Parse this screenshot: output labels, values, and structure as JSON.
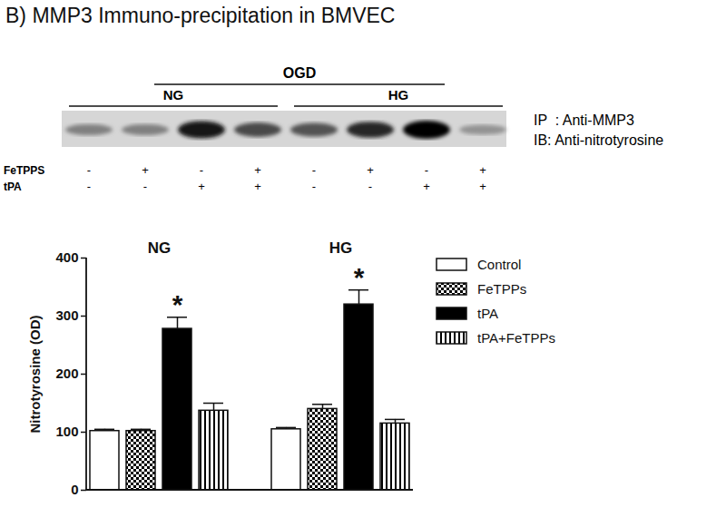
{
  "header": {
    "title": "B) MMP3 Immuno-precipitation in BMVEC"
  },
  "blot": {
    "span_label": "OGD",
    "groups": [
      {
        "label": "NG",
        "lanes": 4
      },
      {
        "label": "HG",
        "lanes": 4
      }
    ],
    "rows": [
      {
        "label": "FeTPPS",
        "signs": [
          "-",
          "+",
          "-",
          "+",
          "-",
          "+",
          "-",
          "+"
        ]
      },
      {
        "label": "tPA",
        "signs": [
          "-",
          "-",
          "+",
          "+",
          "-",
          "-",
          "+",
          "+"
        ]
      }
    ],
    "side_labels": [
      "IP  : Anti-MMP3",
      "IB: Anti-nitrotyrosine"
    ],
    "band_intensity": [
      0.35,
      0.35,
      0.9,
      0.65,
      0.6,
      0.8,
      1.0,
      0.25
    ]
  },
  "chart_data": {
    "type": "bar",
    "categories": [
      "NG",
      "HG"
    ],
    "y_label": "Nitrotyrosine (OD)",
    "ylim": [
      0,
      400
    ],
    "yticks": [
      0,
      100,
      200,
      300,
      400
    ],
    "grid": false,
    "legend": "top-right",
    "series": [
      {
        "name": "Control",
        "color": "#ffffff",
        "values": [
          102,
          105
        ],
        "errors": [
          3,
          3
        ]
      },
      {
        "name": "FeTPPs",
        "color": "#000000",
        "values": [
          102,
          140
        ],
        "errors": [
          3,
          8
        ]
      },
      {
        "name": "tPA",
        "color": "#000000",
        "values": [
          278,
          320
        ],
        "errors": [
          20,
          25
        ]
      },
      {
        "name": "tPA+FeTPPs",
        "color": "#000000",
        "values": [
          137,
          115
        ],
        "errors": [
          13,
          7
        ]
      }
    ],
    "annotations": [
      {
        "text": "*",
        "category": "NG",
        "series": "tPA"
      },
      {
        "text": "*",
        "category": "HG",
        "series": "tPA"
      }
    ]
  }
}
